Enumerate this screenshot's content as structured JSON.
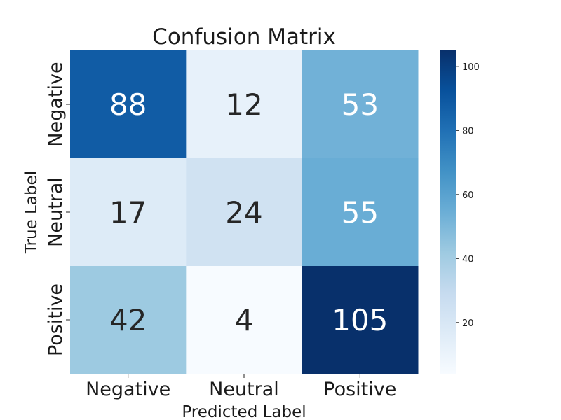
{
  "chart_data": {
    "type": "heatmap",
    "title": "Confusion Matrix",
    "xlabel": "Predicted Label",
    "ylabel": "True Label",
    "x_categories": [
      "Negative",
      "Neutral",
      "Positive"
    ],
    "y_categories": [
      "Negative",
      "Neutral",
      "Positive"
    ],
    "values": [
      [
        88,
        12,
        53
      ],
      [
        17,
        24,
        55
      ],
      [
        42,
        4,
        105
      ]
    ],
    "colormap": "Blues",
    "color_range": [
      4,
      105
    ],
    "colorbar": {
      "ticks": [
        20,
        40,
        60,
        80,
        100
      ],
      "tick_labels": [
        "20",
        "40",
        "60",
        "80",
        "100"
      ]
    },
    "annotations": true,
    "grid": false
  }
}
